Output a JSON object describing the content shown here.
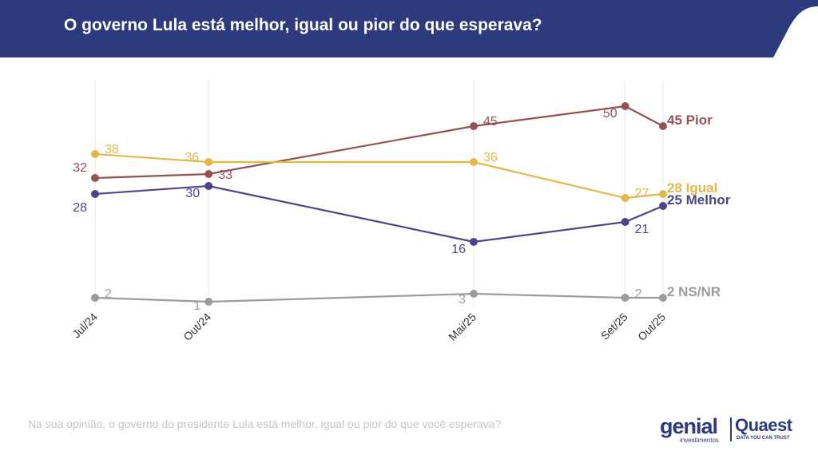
{
  "header": {
    "title": "O governo Lula está melhor, igual ou pior do que esperava?",
    "background_color": "#2d3a7e"
  },
  "footnote": "Na sua opinião, o governo do presidente Lula está melhor, igual ou pior do que você esperava?",
  "logos": {
    "genial_name": "genial",
    "genial_sub": "investimentos",
    "quaest_name": "Quaest",
    "quaest_sub": "DATA YOU CAN TRUST"
  },
  "chart_data": {
    "type": "line",
    "title": "",
    "xlabel": "",
    "ylabel": "",
    "categories": [
      "Jul/24",
      "Out/24",
      "Mai/25",
      "Set/25",
      "Out/25"
    ],
    "x_months": [
      0,
      3,
      10,
      14,
      15
    ],
    "ylim": [
      0,
      55
    ],
    "vertical_grid": true,
    "horizontal_grid": false,
    "series": [
      {
        "name": "Pior",
        "color": "#955252",
        "values": [
          32,
          33,
          45,
          50,
          45
        ],
        "end_label": "45 Pior"
      },
      {
        "name": "Igual",
        "color": "#e2b84a",
        "values": [
          38,
          36,
          36,
          27,
          28
        ],
        "end_label": "28 Igual"
      },
      {
        "name": "Melhor",
        "color": "#4a4688",
        "values": [
          28,
          30,
          16,
          21,
          25
        ],
        "end_label": "25 Melhor"
      },
      {
        "name": "NS/NR",
        "color": "#9b9b9b",
        "values": [
          2,
          1,
          3,
          2,
          2
        ],
        "end_label": "2 NS/NR"
      }
    ]
  }
}
